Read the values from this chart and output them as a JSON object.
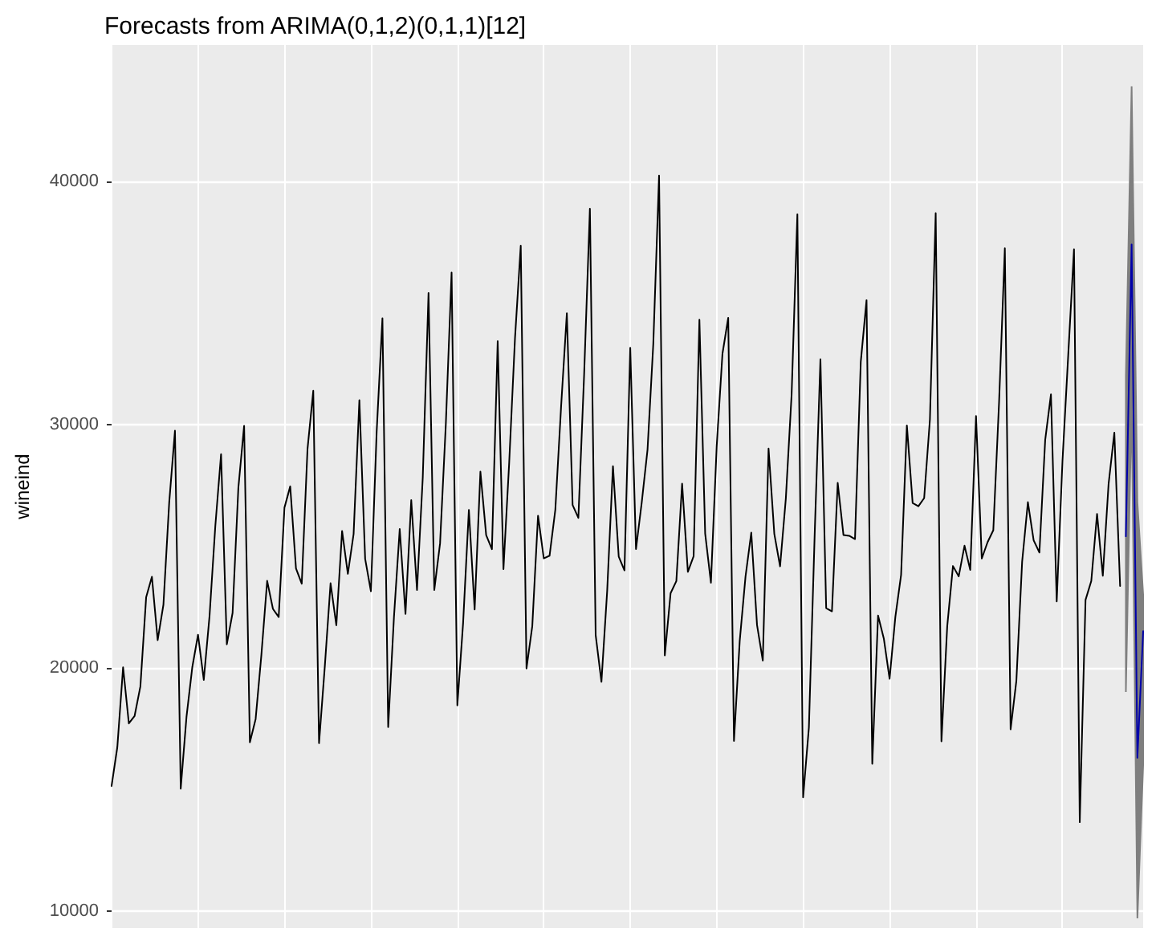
{
  "chart_data": {
    "type": "line",
    "title": "Forecasts from ARIMA(0,1,2)(0,1,1)[12]",
    "ylabel": "wineind",
    "categories": [
      null,
      null,
      null,
      null,
      null,
      null,
      null,
      null,
      null,
      null,
      null,
      null,
      null,
      null,
      null,
      null,
      null,
      null,
      null,
      null,
      null,
      null,
      null,
      null,
      null,
      null,
      null,
      null,
      null,
      null,
      null,
      null,
      null,
      null,
      null,
      null,
      null,
      null,
      null,
      null,
      null,
      null,
      null,
      null,
      null,
      null,
      null,
      null,
      null,
      null,
      null,
      null,
      null,
      null,
      null,
      null,
      null,
      null,
      null,
      null,
      null,
      null,
      null,
      null,
      null,
      null,
      null,
      null,
      null,
      null,
      null,
      null,
      null,
      null,
      null,
      null,
      null,
      null,
      null,
      null,
      null,
      null,
      null,
      null,
      null,
      null,
      null,
      null,
      null,
      null,
      null,
      null,
      null,
      null,
      null,
      null,
      null,
      null,
      null,
      null,
      null,
      null,
      null,
      null,
      null,
      null,
      null,
      null,
      null,
      null,
      null,
      null,
      null,
      null,
      null,
      null,
      null,
      null,
      null,
      null,
      null,
      null,
      null,
      null,
      null,
      null,
      null,
      null,
      null,
      null,
      null,
      null,
      null,
      null,
      null,
      null,
      null,
      null,
      null,
      null,
      null,
      null,
      null,
      null,
      null,
      null,
      null,
      null,
      null,
      null,
      null,
      null,
      null,
      null,
      null,
      null,
      null,
      null,
      null,
      null,
      null,
      null,
      null,
      null,
      null,
      null,
      null,
      null,
      null,
      null,
      null,
      null,
      null,
      null,
      null,
      null,
      null,
      null,
      null,
      null
    ],
    "series": [
      {
        "color": "#000000",
        "values": [
          15136,
          16733,
          20016,
          17708,
          18019,
          19227,
          22893,
          23739,
          21133,
          22591,
          26786,
          29740,
          15028,
          17977,
          20008,
          21354,
          19498,
          22125,
          25817,
          28779,
          20960,
          22254,
          27392,
          29945,
          16933,
          17892,
          20533,
          23569,
          22417,
          22084,
          26580,
          27454,
          24081,
          23451,
          28991,
          31386,
          16896,
          20045,
          23471,
          21747,
          25621,
          23859,
          25500,
          30998,
          24475,
          23145,
          29701,
          34365,
          17556,
          22077,
          25702,
          22214,
          26886,
          23191,
          27831,
          35406,
          23195,
          25110,
          30009,
          36242,
          18450,
          21845,
          26488,
          22394,
          28057,
          25451,
          24872,
          33424,
          24052,
          28449,
          33533,
          37351,
          19969,
          21701,
          26249,
          24493,
          24603,
          26485,
          30723,
          34569,
          26689,
          26157,
          32064,
          38870,
          21337,
          19419,
          23166,
          28286,
          24570,
          24001,
          33151,
          24878,
          26804,
          28967,
          33311,
          40226,
          20504,
          23060,
          23562,
          27562,
          23940,
          24584,
          34303,
          25517,
          23494,
          29095,
          32903,
          34379,
          16991,
          21109,
          23740,
          25552,
          21752,
          20294,
          29009,
          25500,
          24166,
          26960,
          31222,
          38641,
          14672,
          17543,
          25453,
          32683,
          22449,
          22316,
          27595,
          25451,
          25421,
          25288,
          32568,
          35110,
          16052,
          22146,
          21198,
          19543,
          22084,
          23816,
          29961,
          26773,
          26635,
          26972,
          30207,
          38687,
          16974,
          21697,
          24179,
          23757,
          25013,
          24019,
          30345,
          24488,
          25156,
          25650,
          30923,
          37240,
          17466,
          19463,
          24352,
          26805,
          25236,
          24735,
          29356,
          31234,
          22724,
          28496,
          32857,
          37198,
          13652,
          22784,
          23565,
          26323,
          23779,
          27549,
          29660,
          23356,
          null,
          null,
          null,
          null
        ]
      },
      {
        "color": "#0000aa",
        "values": [
          null,
          null,
          null,
          null,
          null,
          null,
          null,
          null,
          null,
          null,
          null,
          null,
          null,
          null,
          null,
          null,
          null,
          null,
          null,
          null,
          null,
          null,
          null,
          null,
          null,
          null,
          null,
          null,
          null,
          null,
          null,
          null,
          null,
          null,
          null,
          null,
          null,
          null,
          null,
          null,
          null,
          null,
          null,
          null,
          null,
          null,
          null,
          null,
          null,
          null,
          null,
          null,
          null,
          null,
          null,
          null,
          null,
          null,
          null,
          null,
          null,
          null,
          null,
          null,
          null,
          null,
          null,
          null,
          null,
          null,
          null,
          null,
          null,
          null,
          null,
          null,
          null,
          null,
          null,
          null,
          null,
          null,
          null,
          null,
          null,
          null,
          null,
          null,
          null,
          null,
          null,
          null,
          null,
          null,
          null,
          null,
          null,
          null,
          null,
          null,
          null,
          null,
          null,
          null,
          null,
          null,
          null,
          null,
          null,
          null,
          null,
          null,
          null,
          null,
          null,
          null,
          null,
          null,
          null,
          null,
          null,
          null,
          null,
          null,
          null,
          null,
          null,
          null,
          null,
          null,
          null,
          null,
          null,
          null,
          null,
          null,
          null,
          null,
          null,
          null,
          null,
          null,
          null,
          null,
          null,
          null,
          null,
          null,
          null,
          null,
          null,
          null,
          null,
          null,
          null,
          null,
          null,
          null,
          null,
          null,
          null,
          null,
          null,
          null,
          null,
          null,
          null,
          null,
          null,
          null,
          null,
          null,
          null,
          null,
          null,
          null,
          25400,
          37400,
          16300,
          21500
        ],
        "lower": [
          null,
          null,
          null,
          null,
          null,
          null,
          null,
          null,
          null,
          null,
          null,
          null,
          null,
          null,
          null,
          null,
          null,
          null,
          null,
          null,
          null,
          null,
          null,
          null,
          null,
          null,
          null,
          null,
          null,
          null,
          null,
          null,
          null,
          null,
          null,
          null,
          null,
          null,
          null,
          null,
          null,
          null,
          null,
          null,
          null,
          null,
          null,
          null,
          null,
          null,
          null,
          null,
          null,
          null,
          null,
          null,
          null,
          null,
          null,
          null,
          null,
          null,
          null,
          null,
          null,
          null,
          null,
          null,
          null,
          null,
          null,
          null,
          null,
          null,
          null,
          null,
          null,
          null,
          null,
          null,
          null,
          null,
          null,
          null,
          null,
          null,
          null,
          null,
          null,
          null,
          null,
          null,
          null,
          null,
          null,
          null,
          null,
          null,
          null,
          null,
          null,
          null,
          null,
          null,
          null,
          null,
          null,
          null,
          null,
          null,
          null,
          null,
          null,
          null,
          null,
          null,
          null,
          null,
          null,
          null,
          null,
          null,
          null,
          null,
          null,
          null,
          null,
          null,
          null,
          null,
          null,
          null,
          null,
          null,
          null,
          null,
          null,
          null,
          null,
          null,
          null,
          null,
          null,
          null,
          null,
          null,
          null,
          null,
          null,
          null,
          null,
          null,
          null,
          null,
          null,
          null,
          null,
          null,
          null,
          null,
          null,
          null,
          null,
          null,
          null,
          null,
          null,
          null,
          null,
          null,
          null,
          null,
          null,
          null,
          null,
          null,
          19000,
          31000,
          9700,
          16000
        ],
        "upper": [
          null,
          null,
          null,
          null,
          null,
          null,
          null,
          null,
          null,
          null,
          null,
          null,
          null,
          null,
          null,
          null,
          null,
          null,
          null,
          null,
          null,
          null,
          null,
          null,
          null,
          null,
          null,
          null,
          null,
          null,
          null,
          null,
          null,
          null,
          null,
          null,
          null,
          null,
          null,
          null,
          null,
          null,
          null,
          null,
          null,
          null,
          null,
          null,
          null,
          null,
          null,
          null,
          null,
          null,
          null,
          null,
          null,
          null,
          null,
          null,
          null,
          null,
          null,
          null,
          null,
          null,
          null,
          null,
          null,
          null,
          null,
          null,
          null,
          null,
          null,
          null,
          null,
          null,
          null,
          null,
          null,
          null,
          null,
          null,
          null,
          null,
          null,
          null,
          null,
          null,
          null,
          null,
          null,
          null,
          null,
          null,
          null,
          null,
          null,
          null,
          null,
          null,
          null,
          null,
          null,
          null,
          null,
          null,
          null,
          null,
          null,
          null,
          null,
          null,
          null,
          null,
          null,
          null,
          null,
          null,
          null,
          null,
          null,
          null,
          null,
          null,
          null,
          null,
          null,
          null,
          null,
          null,
          null,
          null,
          null,
          null,
          null,
          null,
          null,
          null,
          null,
          null,
          null,
          null,
          null,
          null,
          null,
          null,
          null,
          null,
          null,
          null,
          null,
          null,
          null,
          null,
          null,
          null,
          null,
          null,
          null,
          null,
          null,
          null,
          null,
          null,
          null,
          null,
          null,
          null,
          null,
          null,
          null,
          null,
          null,
          null,
          32000,
          43900,
          26800,
          23000
        ]
      }
    ],
    "ylim": [
      9300,
      45600
    ],
    "yticks": [
      10000,
      20000,
      30000,
      40000
    ],
    "grid": true,
    "tick_labels": "y",
    "line_style": "solid"
  }
}
